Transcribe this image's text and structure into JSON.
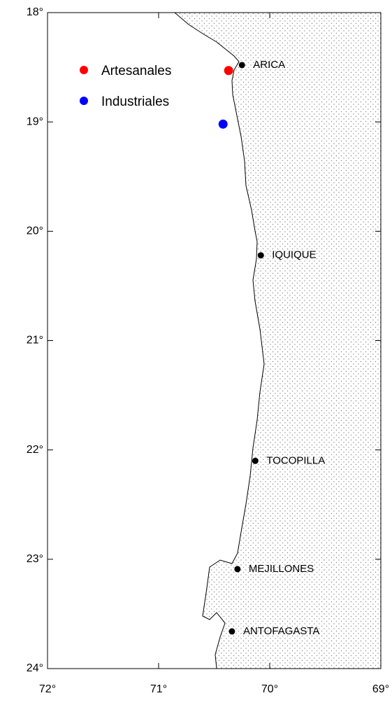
{
  "chart_data": {
    "type": "scatter",
    "xlim": [
      72,
      69
    ],
    "xticks": [
      {
        "value": 72,
        "label": "72°"
      },
      {
        "value": 71,
        "label": "71°"
      },
      {
        "value": 70,
        "label": "70°"
      },
      {
        "value": 69,
        "label": "69°"
      }
    ],
    "ylim": [
      18,
      24
    ],
    "yticks": [
      {
        "value": 18,
        "label": "18°"
      },
      {
        "value": 19,
        "label": "19°"
      },
      {
        "value": 20,
        "label": "20°"
      },
      {
        "value": 21,
        "label": "21°"
      },
      {
        "value": 22,
        "label": "22°"
      },
      {
        "value": 23,
        "label": "23°"
      },
      {
        "value": 24,
        "label": "24°"
      }
    ],
    "legend": "upper left",
    "series": [
      {
        "name": "Artesanales",
        "color": "#ff0000",
        "x": [
          70.37
        ],
        "y": [
          18.53
        ]
      },
      {
        "name": "Industriales",
        "color": "#0000ff",
        "x": [
          70.42
        ],
        "y": [
          19.02
        ]
      }
    ],
    "cities": [
      {
        "name": "ARICA",
        "x": 70.25,
        "y": 18.48
      },
      {
        "name": "IQUIQUE",
        "x": 70.08,
        "y": 20.22
      },
      {
        "name": "TOCOPILLA",
        "x": 70.13,
        "y": 22.1
      },
      {
        "name": "MEJILLONES",
        "x": 70.29,
        "y": 23.09
      },
      {
        "name": "ANTOFAGASTA",
        "x": 70.34,
        "y": 23.66
      }
    ]
  }
}
